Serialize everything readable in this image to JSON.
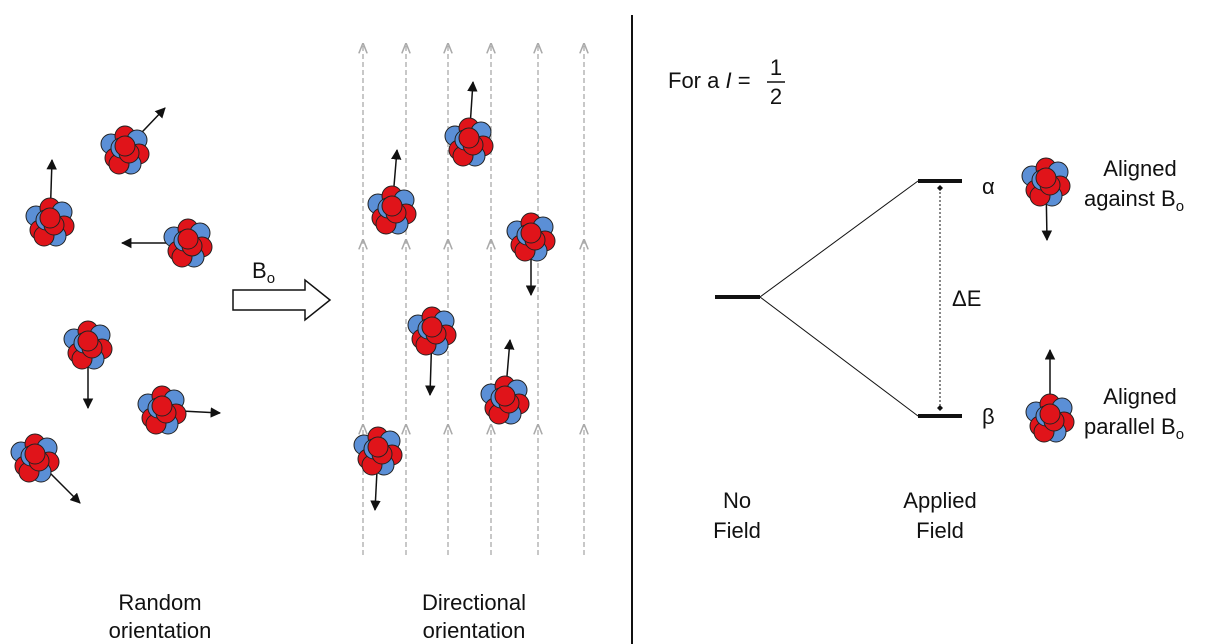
{
  "left": {
    "field_label": {
      "main": "B",
      "sub": "o"
    },
    "random_label": [
      "Random",
      "orientation"
    ],
    "directional_label": [
      "Directional",
      "orientation"
    ]
  },
  "right": {
    "spin_label": {
      "prefix": "For a",
      "symbol": "I",
      "equals": "=",
      "numerator": "1",
      "denominator": "2"
    },
    "alpha": "α",
    "beta": "β",
    "delta_e": "ΔE",
    "alpha_desc": {
      "line1": "Aligned",
      "line2": "against B",
      "sub": "o"
    },
    "beta_desc": {
      "line1": "Aligned",
      "line2": "parallel B",
      "sub": "o"
    },
    "no_field": [
      "No",
      "Field"
    ],
    "applied_field": [
      "Applied",
      "Field"
    ]
  }
}
